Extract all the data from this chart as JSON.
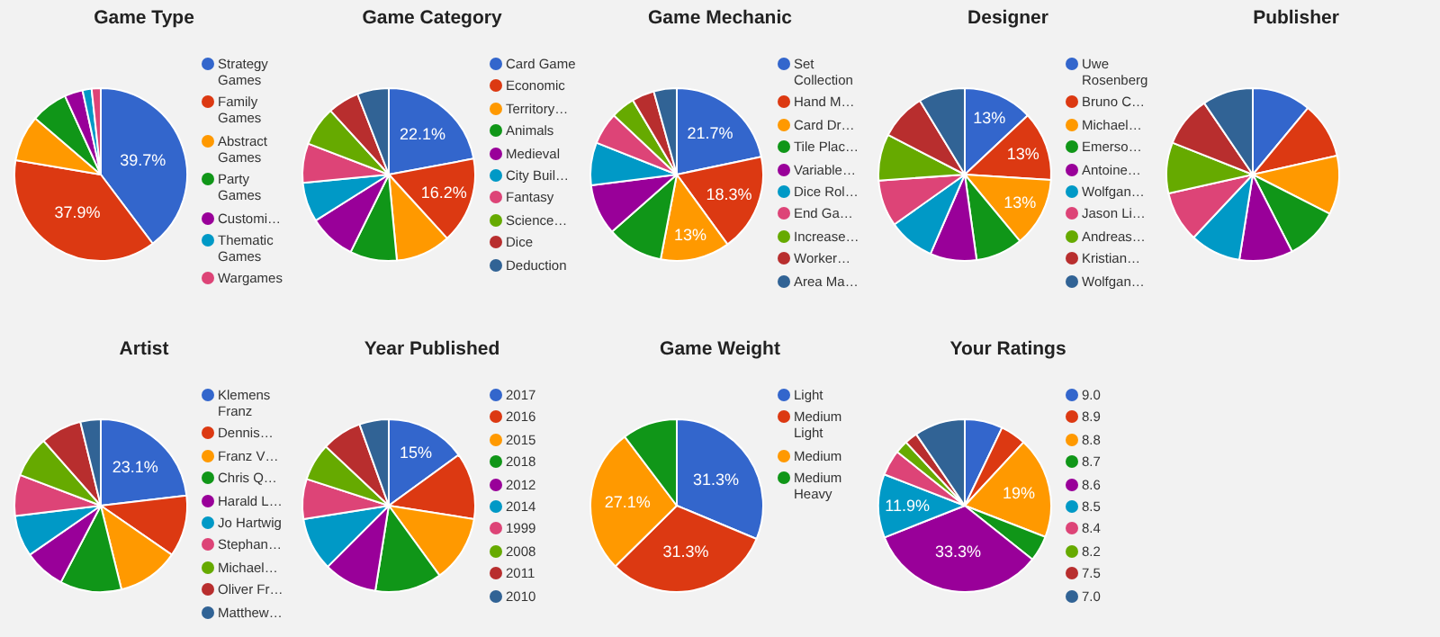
{
  "chart_data": [
    {
      "type": "pie",
      "title": "Game Type",
      "legend": "right",
      "categories": [
        "Strategy Games",
        "Family Games",
        "Abstract Games",
        "Party Games",
        "Customi…",
        "Thematic Games",
        "Wargames"
      ],
      "values": [
        39.7,
        37.9,
        8.6,
        6.9,
        3.4,
        1.7,
        1.7
      ],
      "value_labels": [
        "39.7%",
        "37.9%",
        null,
        null,
        null,
        null,
        null
      ],
      "colors": [
        "#3366cc",
        "#dc3912",
        "#ff9900",
        "#109618",
        "#990099",
        "#0099c6",
        "#dd4477"
      ]
    },
    {
      "type": "pie",
      "title": "Game Category",
      "legend": "right",
      "categories": [
        "Card Game",
        "Economic",
        "Territory…",
        "Animals",
        "Medieval",
        "City Buil…",
        "Fantasy",
        "Science…",
        "Dice",
        "Deduction"
      ],
      "values": [
        22.1,
        16.2,
        10.3,
        8.8,
        8.8,
        7.4,
        7.4,
        7.4,
        5.9,
        5.9
      ],
      "value_labels": [
        "22.1%",
        "16.2%",
        null,
        null,
        null,
        null,
        null,
        null,
        null,
        null
      ],
      "colors": [
        "#3366cc",
        "#dc3912",
        "#ff9900",
        "#109618",
        "#990099",
        "#0099c6",
        "#dd4477",
        "#66aa00",
        "#b82e2e",
        "#316395"
      ]
    },
    {
      "type": "pie",
      "title": "Game Mechanic",
      "legend": "right",
      "categories": [
        "Set Collection",
        "Hand M…",
        "Card Dr…",
        "Tile Plac…",
        "Variable…",
        "Dice Rol…",
        "End Ga…",
        "Increase…",
        "Worker…",
        "Area Ma…"
      ],
      "values": [
        21.7,
        18.3,
        13,
        10.5,
        9.5,
        8,
        6,
        4.5,
        4.2,
        4.3
      ],
      "value_labels": [
        "21.7%",
        "18.3%",
        "13%",
        null,
        null,
        null,
        null,
        null,
        null,
        null
      ],
      "colors": [
        "#3366cc",
        "#dc3912",
        "#ff9900",
        "#109618",
        "#990099",
        "#0099c6",
        "#dd4477",
        "#66aa00",
        "#b82e2e",
        "#316395"
      ]
    },
    {
      "type": "pie",
      "title": "Designer",
      "legend": "right",
      "categories": [
        "Uwe Rosenberg",
        "Bruno C…",
        "Michael…",
        "Emerso…",
        "Antoine…",
        "Wolfgan…",
        "Jason Li…",
        "Andreas…",
        "Kristian…",
        "Wolfgan…"
      ],
      "values": [
        13,
        13,
        13,
        8.8,
        8.7,
        8.7,
        8.7,
        8.7,
        8.7,
        8.7
      ],
      "value_labels": [
        "13%",
        "13%",
        "13%",
        null,
        null,
        null,
        null,
        null,
        null,
        null
      ],
      "colors": [
        "#3366cc",
        "#dc3912",
        "#ff9900",
        "#109618",
        "#990099",
        "#0099c6",
        "#dd4477",
        "#66aa00",
        "#b82e2e",
        "#316395"
      ]
    },
    {
      "type": "pie",
      "title": "Publisher",
      "categories": [
        null,
        null,
        null,
        null,
        null,
        null,
        null,
        null,
        null,
        null
      ],
      "values": [
        11,
        10.5,
        11,
        10,
        10,
        9.5,
        9.5,
        9.5,
        9.5,
        9.5
      ],
      "colors": [
        "#3366cc",
        "#dc3912",
        "#ff9900",
        "#109618",
        "#990099",
        "#0099c6",
        "#dd4477",
        "#66aa00",
        "#b82e2e",
        "#316395"
      ]
    },
    {
      "type": "pie",
      "title": "Artist",
      "legend": "right",
      "categories": [
        "Klemens Franz",
        "Dennis…",
        "Franz V…",
        "Chris Q…",
        "Harald L…",
        "Jo Hartwig",
        "Stephan…",
        "Michael…",
        "Oliver Fr…",
        "Matthew…"
      ],
      "values": [
        23.1,
        11.5,
        11.5,
        11.5,
        7.7,
        7.7,
        7.7,
        7.7,
        7.7,
        3.8
      ],
      "value_labels": [
        "23.1%",
        null,
        null,
        null,
        null,
        null,
        null,
        null,
        null,
        null
      ],
      "colors": [
        "#3366cc",
        "#dc3912",
        "#ff9900",
        "#109618",
        "#990099",
        "#0099c6",
        "#dd4477",
        "#66aa00",
        "#b82e2e",
        "#316395"
      ]
    },
    {
      "type": "pie",
      "title": "Year Published",
      "legend": "right",
      "categories": [
        "2017",
        "2016",
        "2015",
        "2018",
        "2012",
        "2014",
        "1999",
        "2008",
        "2011",
        "2010"
      ],
      "values": [
        15,
        12.5,
        12.5,
        12.5,
        10,
        10,
        7.5,
        7,
        7.5,
        5.5
      ],
      "value_labels": [
        "15%",
        null,
        null,
        null,
        null,
        null,
        null,
        null,
        null,
        null
      ],
      "colors": [
        "#3366cc",
        "#dc3912",
        "#ff9900",
        "#109618",
        "#990099",
        "#0099c6",
        "#dd4477",
        "#66aa00",
        "#b82e2e",
        "#316395"
      ]
    },
    {
      "type": "pie",
      "title": "Game Weight",
      "legend": "right",
      "categories": [
        "Light",
        "Medium Light",
        "Medium",
        "Medium Heavy"
      ],
      "values": [
        31.3,
        31.3,
        27.1,
        10.3
      ],
      "value_labels": [
        "31.3%",
        "31.3%",
        "27.1%",
        null
      ],
      "colors": [
        "#3366cc",
        "#dc3912",
        "#ff9900",
        "#109618"
      ]
    },
    {
      "type": "pie",
      "title": "Your Ratings",
      "legend": "right",
      "categories": [
        "9.0",
        "8.9",
        "8.8",
        "8.7",
        "8.6",
        "8.5",
        "8.4",
        "8.2",
        "7.5",
        "7.0"
      ],
      "values": [
        7.1,
        4.8,
        19,
        4.8,
        33.3,
        11.9,
        4.8,
        2.4,
        2.4,
        9.5
      ],
      "value_labels": [
        null,
        null,
        "19%",
        null,
        "33.3%",
        "11.9%",
        null,
        null,
        null,
        null
      ],
      "colors": [
        "#3366cc",
        "#dc3912",
        "#ff9900",
        "#109618",
        "#990099",
        "#0099c6",
        "#dd4477",
        "#66aa00",
        "#b82e2e",
        "#316395"
      ]
    }
  ]
}
